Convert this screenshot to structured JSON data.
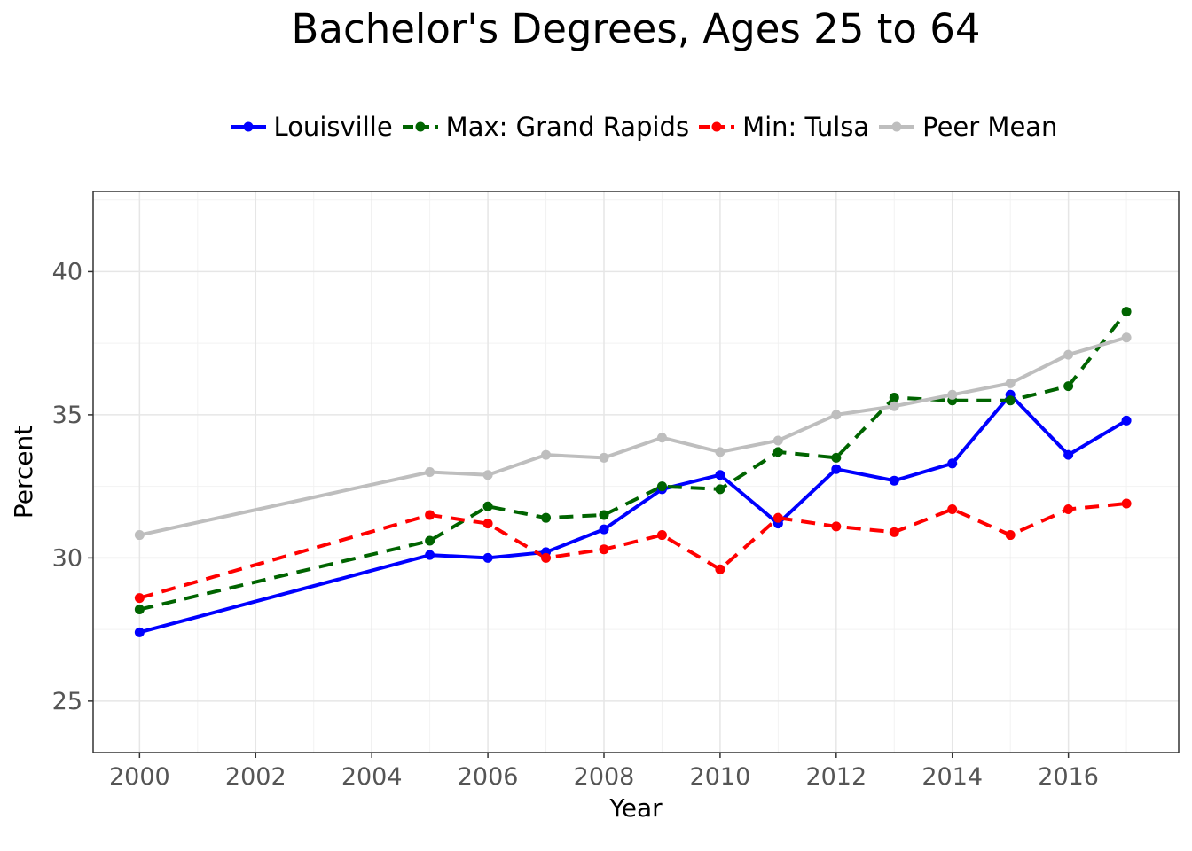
{
  "chart_data": {
    "type": "line",
    "title": "Bachelor's Degrees, Ages 25 to 64",
    "xlabel": "Year",
    "ylabel": "Percent",
    "xlim": [
      1999.2,
      2017.9
    ],
    "ylim": [
      23.2,
      42.8
    ],
    "xticks": [
      2000,
      2002,
      2004,
      2006,
      2008,
      2010,
      2012,
      2014,
      2016
    ],
    "yticks": [
      25,
      30,
      35,
      40
    ],
    "grid": true,
    "legend_position": "top",
    "series": [
      {
        "name": "Louisville",
        "color": "#0000ff",
        "dashed": false,
        "x": [
          2000,
          2005,
          2006,
          2007,
          2008,
          2009,
          2010,
          2011,
          2012,
          2013,
          2014,
          2015,
          2016,
          2017
        ],
        "values": [
          27.4,
          30.1,
          30.0,
          30.2,
          31.0,
          32.4,
          32.9,
          31.2,
          33.1,
          32.7,
          33.3,
          35.7,
          33.6,
          34.8
        ]
      },
      {
        "name": "Max: Grand Rapids",
        "color": "#006400",
        "dashed": true,
        "x": [
          2000,
          2005,
          2006,
          2007,
          2008,
          2009,
          2010,
          2011,
          2012,
          2013,
          2014,
          2015,
          2016,
          2017
        ],
        "values": [
          28.2,
          30.6,
          31.8,
          31.4,
          31.5,
          32.5,
          32.4,
          33.7,
          33.5,
          35.6,
          35.5,
          35.5,
          36.0,
          38.6
        ]
      },
      {
        "name": "Min: Tulsa",
        "color": "#ff0000",
        "dashed": true,
        "x": [
          2000,
          2005,
          2006,
          2007,
          2008,
          2009,
          2010,
          2011,
          2012,
          2013,
          2014,
          2015,
          2016,
          2017
        ],
        "values": [
          28.6,
          31.5,
          31.2,
          30.0,
          30.3,
          30.8,
          29.6,
          31.4,
          31.1,
          30.9,
          31.7,
          30.8,
          31.7,
          31.9
        ]
      },
      {
        "name": "Peer Mean",
        "color": "#bebebe",
        "dashed": false,
        "x": [
          2000,
          2005,
          2006,
          2007,
          2008,
          2009,
          2010,
          2011,
          2012,
          2013,
          2014,
          2015,
          2016,
          2017
        ],
        "values": [
          30.8,
          33.0,
          32.9,
          33.6,
          33.5,
          34.2,
          33.7,
          34.1,
          35.0,
          35.3,
          35.7,
          36.1,
          37.1,
          37.7
        ]
      }
    ]
  }
}
